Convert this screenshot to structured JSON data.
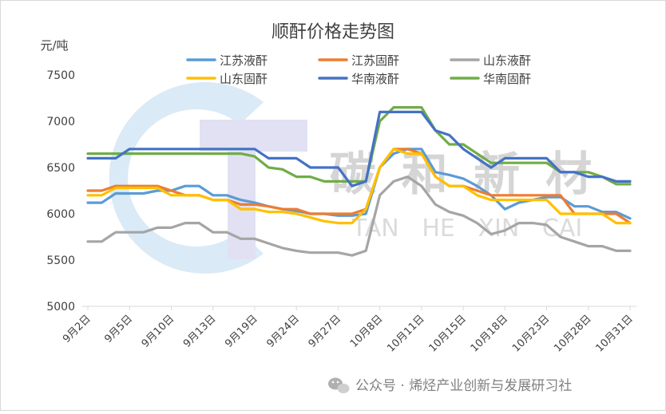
{
  "chart_data": {
    "type": "line",
    "title": "顺酐价格走势图",
    "ylabel": "元/吨",
    "ylim": [
      5000,
      7500
    ],
    "yticks": [
      5000,
      5500,
      6000,
      6500,
      7000,
      7500
    ],
    "grid": false,
    "legend_position": "top",
    "categories": [
      "9月2日",
      "9月3日",
      "9月4日",
      "9月5日",
      "9月6日",
      "9月9日",
      "9月10日",
      "9月11日",
      "9月12日",
      "9月13日",
      "9月14日",
      "9月18日",
      "9月19日",
      "9月20日",
      "9月23日",
      "9月24日",
      "9月25日",
      "9月26日",
      "9月27日",
      "9月29日",
      "9月30日",
      "10月8日",
      "10月9日",
      "10月10日",
      "10月11日",
      "10月12日",
      "10月14日",
      "10月15日",
      "10月16日",
      "10月17日",
      "10月18日",
      "10月21日",
      "10月22日",
      "10月23日",
      "10月24日",
      "10月25日",
      "10月28日",
      "10月29日",
      "10月30日",
      "10月31日"
    ],
    "xtick_labels": [
      "9月2日",
      "9月5日",
      "9月10日",
      "9月13日",
      "9月19日",
      "9月24日",
      "9月27日",
      "10月8日",
      "10月11日",
      "10月15日",
      "10月18日",
      "10月23日",
      "10月28日",
      "10月31日"
    ],
    "xtick_indices": [
      0,
      3,
      6,
      9,
      12,
      15,
      18,
      21,
      24,
      27,
      30,
      33,
      36,
      39
    ],
    "series": [
      {
        "name": "江苏液酐",
        "color": "#5B9BD5",
        "values": [
          6120,
          6120,
          6220,
          6220,
          6220,
          6250,
          6250,
          6300,
          6300,
          6200,
          6200,
          6150,
          6120,
          6080,
          6050,
          6030,
          6000,
          6000,
          5980,
          5980,
          6000,
          6500,
          6650,
          6700,
          6700,
          6450,
          6420,
          6380,
          6300,
          6200,
          6050,
          6120,
          6150,
          6180,
          6180,
          6080,
          6080,
          6020,
          6020,
          5950
        ]
      },
      {
        "name": "江苏固酐",
        "color": "#ED7D31",
        "values": [
          6250,
          6250,
          6300,
          6300,
          6300,
          6300,
          6250,
          6200,
          6200,
          6150,
          6150,
          6100,
          6100,
          6080,
          6050,
          6050,
          6000,
          6000,
          6000,
          6000,
          6050,
          6500,
          6700,
          6700,
          6650,
          6400,
          6300,
          6300,
          6250,
          6200,
          6200,
          6200,
          6200,
          6200,
          6200,
          6000,
          6000,
          6000,
          6000,
          5900
        ]
      },
      {
        "name": "山东液酐",
        "color": "#A5A5A5",
        "values": [
          5700,
          5700,
          5800,
          5800,
          5800,
          5850,
          5850,
          5900,
          5900,
          5800,
          5800,
          5730,
          5730,
          5680,
          5630,
          5600,
          5580,
          5580,
          5580,
          5550,
          5600,
          6200,
          6350,
          6400,
          6300,
          6100,
          6020,
          5980,
          5900,
          5780,
          5820,
          5900,
          5900,
          5880,
          5750,
          5700,
          5650,
          5650,
          5600,
          5600
        ]
      },
      {
        "name": "山东固酐",
        "color": "#FFC000",
        "values": [
          6200,
          6200,
          6280,
          6280,
          6280,
          6280,
          6200,
          6200,
          6200,
          6150,
          6150,
          6050,
          6050,
          6020,
          6020,
          6000,
          5960,
          5920,
          5900,
          5900,
          6050,
          6500,
          6700,
          6650,
          6650,
          6400,
          6300,
          6300,
          6200,
          6150,
          6150,
          6150,
          6150,
          6150,
          6000,
          6000,
          6000,
          6000,
          5900,
          5900
        ]
      },
      {
        "name": "华南液酐",
        "color": "#4472C4",
        "values": [
          6600,
          6600,
          6600,
          6700,
          6700,
          6700,
          6700,
          6700,
          6700,
          6700,
          6700,
          6700,
          6700,
          6600,
          6600,
          6600,
          6500,
          6500,
          6500,
          6300,
          6350,
          7100,
          7100,
          7100,
          7100,
          6900,
          6850,
          6700,
          6600,
          6500,
          6600,
          6600,
          6600,
          6600,
          6450,
          6450,
          6400,
          6400,
          6350,
          6350
        ]
      },
      {
        "name": "华南固酐",
        "color": "#70AD47",
        "values": [
          6650,
          6650,
          6650,
          6650,
          6650,
          6650,
          6650,
          6650,
          6650,
          6650,
          6650,
          6650,
          6620,
          6500,
          6480,
          6400,
          6400,
          6350,
          6350,
          6350,
          6350,
          7000,
          7150,
          7150,
          7150,
          6900,
          6750,
          6750,
          6650,
          6550,
          6550,
          6550,
          6550,
          6550,
          6450,
          6450,
          6450,
          6400,
          6320,
          6320
        ]
      }
    ]
  },
  "watermark": {
    "cn": "碳 和 新 材",
    "en": "TAN   HE   XIN   CAI"
  },
  "footer": {
    "source": "公众号 · 烯烃产业创新与发展研习社",
    "icon": "wechat-icon"
  }
}
